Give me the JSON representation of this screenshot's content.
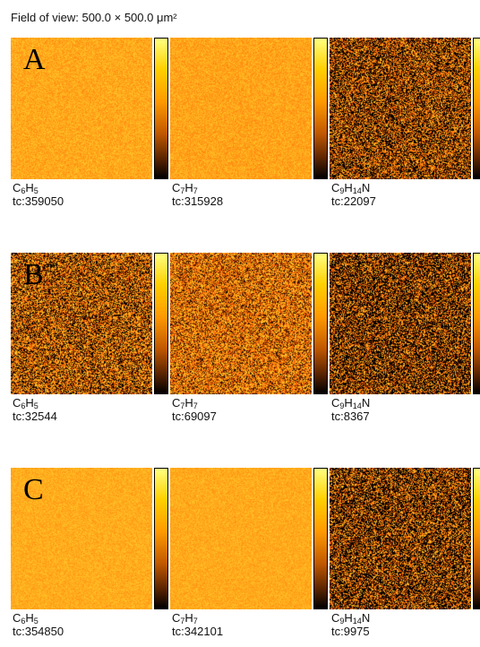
{
  "field_of_view": "Field of view: 500.0 × 500.0 μm²",
  "rows": [
    {
      "letter": "A",
      "maps": [
        {
          "ion_main": "C",
          "ion_sub1": "6",
          "ion_mid": "H",
          "ion_sub2": "5",
          "ion_tail": "",
          "tc": "tc:359050",
          "brightness": 0.85,
          "speckle": 0.15
        },
        {
          "ion_main": "C",
          "ion_sub1": "7",
          "ion_mid": "H",
          "ion_sub2": "7",
          "ion_tail": "",
          "tc": "tc:315928",
          "brightness": 0.83,
          "speckle": 0.15
        },
        {
          "ion_main": "C",
          "ion_sub1": "9",
          "ion_mid": "H",
          "ion_sub2": "14",
          "ion_tail": "N",
          "tc": "tc:22097",
          "brightness": 0.3,
          "speckle": 0.75
        }
      ]
    },
    {
      "letter": "B",
      "maps": [
        {
          "ion_main": "C",
          "ion_sub1": "6",
          "ion_mid": "H",
          "ion_sub2": "5",
          "ion_tail": "",
          "tc": "tc:32544",
          "brightness": 0.42,
          "speckle": 0.7
        },
        {
          "ion_main": "C",
          "ion_sub1": "7",
          "ion_mid": "H",
          "ion_sub2": "7",
          "ion_tail": "",
          "tc": "tc:69097",
          "brightness": 0.55,
          "speckle": 0.55
        },
        {
          "ion_main": "C",
          "ion_sub1": "9",
          "ion_mid": "H",
          "ion_sub2": "14",
          "ion_tail": "N",
          "tc": "tc:8367",
          "brightness": 0.2,
          "speckle": 0.85
        }
      ]
    },
    {
      "letter": "C",
      "maps": [
        {
          "ion_main": "C",
          "ion_sub1": "6",
          "ion_mid": "H",
          "ion_sub2": "5",
          "ion_tail": "",
          "tc": "tc:354850",
          "brightness": 0.87,
          "speckle": 0.12
        },
        {
          "ion_main": "C",
          "ion_sub1": "7",
          "ion_mid": "H",
          "ion_sub2": "7",
          "ion_tail": "",
          "tc": "tc:342101",
          "brightness": 0.86,
          "speckle": 0.12
        },
        {
          "ion_main": "C",
          "ion_sub1": "9",
          "ion_mid": "H",
          "ion_sub2": "14",
          "ion_tail": "N",
          "tc": "tc:9975",
          "brightness": 0.22,
          "speckle": 0.85
        }
      ]
    }
  ],
  "colors": {
    "scale_top": "#ffff80",
    "scale_mid": "#ff9a00",
    "scale_bottom": "#000000"
  }
}
